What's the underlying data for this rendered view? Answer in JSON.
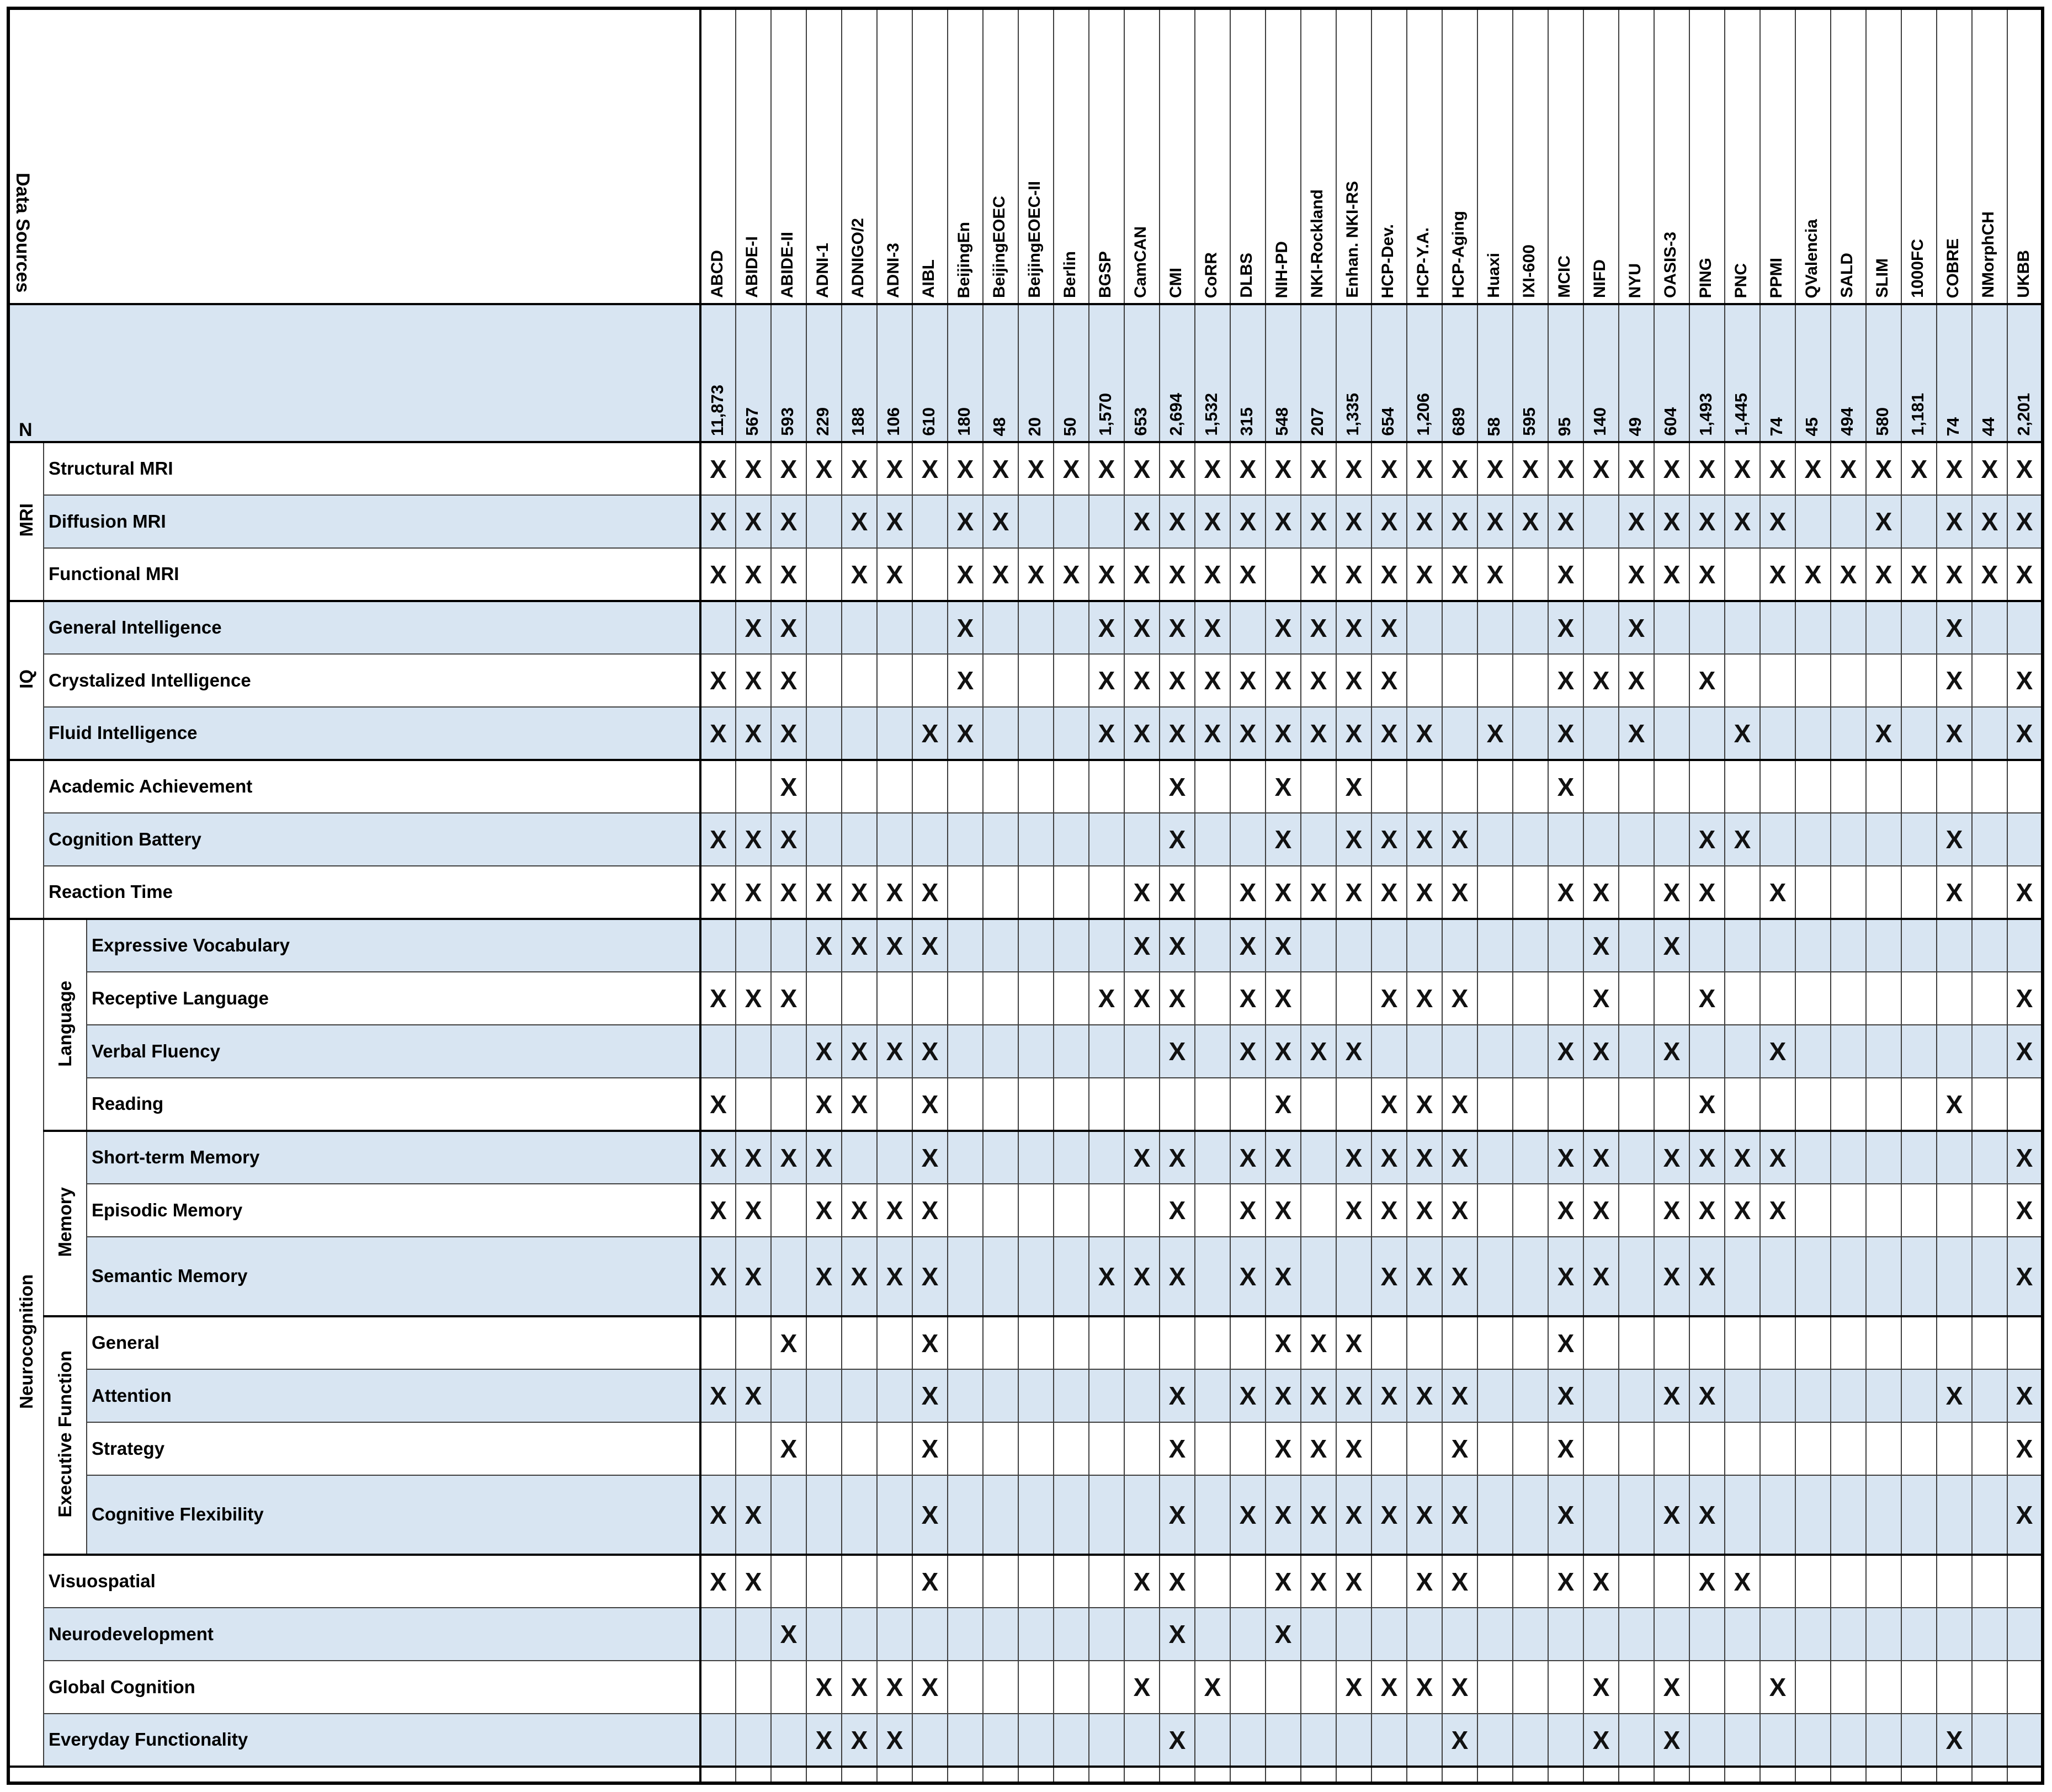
{
  "title_cell": "Data Sources",
  "n_row_label": "N",
  "mark_glyph": "X",
  "colors": {
    "band_blue": "#d8e5f2",
    "band_white": "#ffffff",
    "grid": "#3f3f3f",
    "text": "#000000"
  },
  "columns": [
    {
      "label": "ABCD",
      "n": "11,873"
    },
    {
      "label": "ABIDE-I",
      "n": "567"
    },
    {
      "label": "ABIDE-II",
      "n": "593"
    },
    {
      "label": "ADNI-1",
      "n": "229"
    },
    {
      "label": "ADNIGO/2",
      "n": "188"
    },
    {
      "label": "ADNI-3",
      "n": "106"
    },
    {
      "label": "AIBL",
      "n": "610"
    },
    {
      "label": "BeijingEn",
      "n": "180"
    },
    {
      "label": "BeijingEOEC",
      "n": "48"
    },
    {
      "label": "BeijingEOEC-II",
      "n": "20"
    },
    {
      "label": "Berlin",
      "n": "50"
    },
    {
      "label": "BGSP",
      "n": "1,570"
    },
    {
      "label": "CamCAN",
      "n": "653"
    },
    {
      "label": "CMI",
      "n": "2,694"
    },
    {
      "label": "CoRR",
      "n": "1,532"
    },
    {
      "label": "DLBS",
      "n": "315"
    },
    {
      "label": "NIH-PD",
      "n": "548"
    },
    {
      "label": "NKI-Rockland",
      "n": "207"
    },
    {
      "label": "Enhan. NKI-RS",
      "n": "1,335"
    },
    {
      "label": "HCP-Dev.",
      "n": "654"
    },
    {
      "label": "HCP-Y.A.",
      "n": "1,206"
    },
    {
      "label": "HCP-Aging",
      "n": "689"
    },
    {
      "label": "Huaxi",
      "n": "58"
    },
    {
      "label": "IXI-600",
      "n": "595"
    },
    {
      "label": "MCIC",
      "n": "95"
    },
    {
      "label": "NIFD",
      "n": "140"
    },
    {
      "label": "NYU",
      "n": "49"
    },
    {
      "label": "OASIS-3",
      "n": "604"
    },
    {
      "label": "PING",
      "n": "1,493"
    },
    {
      "label": "PNC",
      "n": "1,445"
    },
    {
      "label": "PPMI",
      "n": "74"
    },
    {
      "label": "QValencia",
      "n": "45"
    },
    {
      "label": "SALD",
      "n": "494"
    },
    {
      "label": "SLIM",
      "n": "580"
    },
    {
      "label": "1000FC",
      "n": "1,181"
    },
    {
      "label": "COBRE",
      "n": "74"
    },
    {
      "label": "NMorphCH",
      "n": "44"
    },
    {
      "label": "UKBB",
      "n": "2,201"
    }
  ],
  "groups": [
    {
      "name": "MRI",
      "start": 0,
      "span": 3
    },
    {
      "name": "IQ",
      "start": 3,
      "span": 3
    },
    {
      "name": "",
      "start": 6,
      "span": 3
    },
    {
      "name": "Neurocognition",
      "start": 9,
      "span": 15
    }
  ],
  "subgroups": [
    {
      "name": "Language",
      "start": 9,
      "span": 4
    },
    {
      "name": "Memory",
      "start": 13,
      "span": 3
    },
    {
      "name": "Executive Function",
      "start": 16,
      "span": 4
    }
  ],
  "rows": [
    {
      "label": "Structural MRI",
      "x": [
        1,
        2,
        3,
        4,
        5,
        6,
        7,
        8,
        9,
        10,
        11,
        12,
        13,
        14,
        15,
        16,
        17,
        18,
        19,
        20,
        21,
        22,
        23,
        24,
        25,
        26,
        27,
        28,
        29,
        30,
        31,
        32,
        33,
        34,
        35,
        36,
        37,
        38
      ]
    },
    {
      "label": "Diffusion MRI",
      "x": [
        1,
        2,
        3,
        5,
        6,
        8,
        9,
        13,
        14,
        15,
        16,
        17,
        18,
        19,
        20,
        21,
        22,
        23,
        24,
        25,
        27,
        28,
        29,
        30,
        31,
        34,
        36,
        37,
        38
      ]
    },
    {
      "label": "Functional MRI",
      "x": [
        1,
        2,
        3,
        5,
        6,
        8,
        9,
        10,
        11,
        12,
        13,
        14,
        15,
        16,
        18,
        19,
        20,
        21,
        22,
        23,
        25,
        27,
        28,
        29,
        31,
        32,
        33,
        34,
        35,
        36,
        37,
        38
      ]
    },
    {
      "label": "General Intelligence",
      "x": [
        2,
        3,
        8,
        12,
        13,
        14,
        15,
        17,
        18,
        19,
        20,
        25,
        27,
        36
      ]
    },
    {
      "label": "Crystalized Intelligence",
      "x": [
        1,
        2,
        3,
        8,
        12,
        13,
        14,
        15,
        16,
        17,
        18,
        19,
        20,
        25,
        26,
        27,
        29,
        36,
        38
      ]
    },
    {
      "label": "Fluid Intelligence",
      "x": [
        1,
        2,
        3,
        7,
        8,
        12,
        13,
        14,
        15,
        16,
        17,
        18,
        19,
        20,
        21,
        23,
        25,
        27,
        30,
        34,
        36,
        38
      ]
    },
    {
      "label": "Academic Achievement",
      "x": [
        3,
        14,
        17,
        19,
        25
      ]
    },
    {
      "label": "Cognition Battery",
      "x": [
        1,
        2,
        3,
        14,
        17,
        19,
        20,
        21,
        22,
        29,
        30,
        36
      ]
    },
    {
      "label": "Reaction Time",
      "x": [
        1,
        2,
        3,
        4,
        5,
        6,
        7,
        13,
        14,
        16,
        17,
        18,
        19,
        20,
        21,
        22,
        25,
        26,
        28,
        29,
        31,
        36,
        38
      ]
    },
    {
      "label": "Expressive Vocabulary",
      "x": [
        4,
        5,
        6,
        7,
        13,
        14,
        16,
        17,
        26,
        28
      ]
    },
    {
      "label": "Receptive Language",
      "x": [
        1,
        2,
        3,
        12,
        13,
        14,
        16,
        17,
        20,
        21,
        22,
        26,
        29,
        38
      ]
    },
    {
      "label": "Verbal Fluency",
      "x": [
        4,
        5,
        6,
        7,
        14,
        16,
        17,
        18,
        19,
        25,
        26,
        28,
        31,
        38
      ]
    },
    {
      "label": "Reading",
      "x": [
        1,
        4,
        5,
        7,
        17,
        20,
        21,
        22,
        29,
        36
      ]
    },
    {
      "label": "Short-term Memory",
      "x": [
        1,
        2,
        3,
        4,
        7,
        13,
        14,
        16,
        17,
        19,
        20,
        21,
        22,
        25,
        26,
        28,
        29,
        30,
        31,
        38
      ]
    },
    {
      "label": "Episodic Memory",
      "x": [
        1,
        2,
        4,
        5,
        6,
        7,
        14,
        16,
        17,
        19,
        20,
        21,
        22,
        25,
        26,
        28,
        29,
        30,
        31,
        38
      ]
    },
    {
      "label": "Semantic Memory",
      "tall": true,
      "x": [
        1,
        2,
        4,
        5,
        6,
        7,
        12,
        13,
        14,
        16,
        17,
        20,
        21,
        22,
        25,
        26,
        28,
        29,
        38
      ]
    },
    {
      "label": "General",
      "x": [
        3,
        7,
        17,
        18,
        19,
        25
      ]
    },
    {
      "label": "Attention",
      "x": [
        1,
        2,
        7,
        14,
        16,
        17,
        18,
        19,
        20,
        21,
        22,
        25,
        28,
        29,
        36,
        38
      ]
    },
    {
      "label": "Strategy",
      "x": [
        3,
        7,
        14,
        17,
        18,
        19,
        22,
        25,
        38
      ]
    },
    {
      "label": "Cognitive Flexibility",
      "tall": true,
      "x": [
        1,
        2,
        7,
        14,
        16,
        17,
        18,
        19,
        20,
        21,
        22,
        25,
        28,
        29,
        38
      ]
    },
    {
      "label": "Visuospatial",
      "x": [
        1,
        2,
        7,
        13,
        14,
        17,
        18,
        19,
        21,
        22,
        25,
        26,
        29,
        30
      ]
    },
    {
      "label": "Neurodevelopment",
      "x": [
        3,
        14,
        17
      ]
    },
    {
      "label": "Global Cognition",
      "x": [
        4,
        5,
        6,
        7,
        13,
        15,
        19,
        20,
        21,
        22,
        26,
        28,
        31
      ]
    },
    {
      "label": "Everyday Functionality",
      "x": [
        4,
        5,
        6,
        14,
        22,
        26,
        28,
        36
      ]
    }
  ]
}
